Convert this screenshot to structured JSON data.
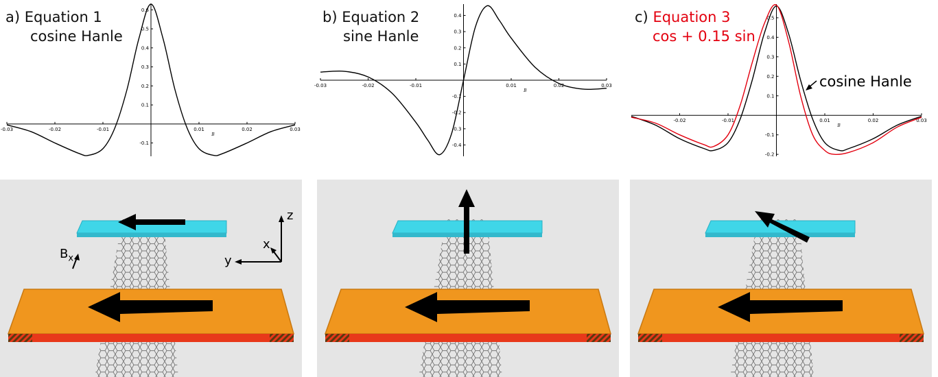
{
  "panels": [
    {
      "letter": "a)",
      "title_line1": "Equation 1",
      "title_line2": "cosine Hanle"
    },
    {
      "letter": "b)",
      "title_line1": "Equation 2",
      "title_line2": "sine Hanle"
    },
    {
      "letter": "c)",
      "title_line1": "Equation 3",
      "title_line2": "cos + 0.15 sin",
      "annotation": "cosine Hanle"
    }
  ],
  "scene_labels": {
    "z": "z",
    "x": "x",
    "y": "y",
    "field": "B",
    "field_sub": "x"
  },
  "colors": {
    "black_curve": "#000000",
    "red_curve": "#e3000f",
    "blue_electrode": "#3fd6e8",
    "orange_electrode": "#f0961e",
    "red_edge": "#e8381a",
    "scene_bg": "#e5e5e5"
  },
  "chart_data": [
    {
      "type": "line",
      "title": "",
      "xlabel": "B",
      "ylabel": "",
      "xlim": [
        -0.03,
        0.03
      ],
      "ylim": [
        -0.17,
        0.63
      ],
      "xticks": [
        "-0.03",
        "-0.02",
        "-0.01",
        "0.01",
        "0.02",
        "0.03"
      ],
      "yticks": [
        "-0.1",
        "0.1",
        "0.2",
        "0.3",
        "0.4",
        "0.5",
        "0.6"
      ],
      "series": [
        {
          "color": "#000000",
          "x": [
            -0.03,
            -0.025,
            -0.02,
            -0.015,
            -0.013,
            -0.01,
            -0.0075,
            -0.005,
            -0.0025,
            0,
            0.0025,
            0.005,
            0.0075,
            0.01,
            0.013,
            0.015,
            0.02,
            0.025,
            0.03
          ],
          "y": [
            -0.005,
            -0.04,
            -0.1,
            -0.155,
            -0.165,
            -0.13,
            -0.02,
            0.18,
            0.45,
            0.63,
            0.45,
            0.18,
            -0.02,
            -0.13,
            -0.165,
            -0.155,
            -0.1,
            -0.04,
            -0.005
          ]
        }
      ]
    },
    {
      "type": "line",
      "title": "",
      "xlabel": "B",
      "ylabel": "",
      "xlim": [
        -0.03,
        0.03
      ],
      "ylim": [
        -0.47,
        0.47
      ],
      "xticks": [
        "-0.03",
        "-0.02",
        "-0.01",
        "0.01",
        "0.02",
        "0.03"
      ],
      "yticks": [
        "-0.4",
        "-0.3",
        "-0.2",
        "-0.1",
        "0.1",
        "0.2",
        "0.3",
        "0.4"
      ],
      "series": [
        {
          "color": "#000000",
          "x": [
            -0.03,
            -0.025,
            -0.02,
            -0.015,
            -0.01,
            -0.0075,
            -0.005,
            -0.0025,
            0,
            0.0025,
            0.005,
            0.0075,
            0.01,
            0.015,
            0.02,
            0.025,
            0.03
          ],
          "y": [
            0.05,
            0.055,
            0.02,
            -0.08,
            -0.26,
            -0.37,
            -0.46,
            -0.33,
            0,
            0.33,
            0.46,
            0.37,
            0.26,
            0.08,
            -0.02,
            -0.055,
            -0.05
          ]
        }
      ]
    },
    {
      "type": "line",
      "title": "",
      "xlabel": "B",
      "ylabel": "",
      "xlim": [
        -0.03,
        0.03
      ],
      "ylim": [
        -0.21,
        0.57
      ],
      "xticks": [
        "-0.02",
        "-0.01",
        "0.01",
        "0.02",
        "0.03"
      ],
      "yticks": [
        "-0.2",
        "-0.1",
        "0.1",
        "0.2",
        "0.3",
        "0.4",
        "0.5"
      ],
      "series": [
        {
          "name": "cosine Hanle",
          "color": "#000000",
          "x": [
            -0.03,
            -0.025,
            -0.02,
            -0.015,
            -0.013,
            -0.01,
            -0.0075,
            -0.005,
            -0.0025,
            0,
            0.0025,
            0.005,
            0.0075,
            0.01,
            0.013,
            0.015,
            0.02,
            0.025,
            0.03
          ],
          "y": [
            -0.005,
            -0.05,
            -0.12,
            -0.17,
            -0.18,
            -0.14,
            -0.02,
            0.18,
            0.42,
            0.56,
            0.42,
            0.18,
            -0.02,
            -0.14,
            -0.18,
            -0.17,
            -0.12,
            -0.05,
            -0.005
          ]
        },
        {
          "name": "cos + 0.15 sin",
          "color": "#e3000f",
          "x": [
            -0.03,
            -0.025,
            -0.02,
            -0.015,
            -0.013,
            -0.01,
            -0.0075,
            -0.005,
            -0.0025,
            0,
            0.0025,
            0.005,
            0.0075,
            0.01,
            0.012,
            0.015,
            0.02,
            0.025,
            0.03
          ],
          "y": [
            -0.01,
            -0.04,
            -0.1,
            -0.15,
            -0.16,
            -0.1,
            0.05,
            0.27,
            0.47,
            0.565,
            0.38,
            0.1,
            -0.1,
            -0.18,
            -0.2,
            -0.19,
            -0.14,
            -0.06,
            -0.01
          ]
        }
      ]
    }
  ]
}
